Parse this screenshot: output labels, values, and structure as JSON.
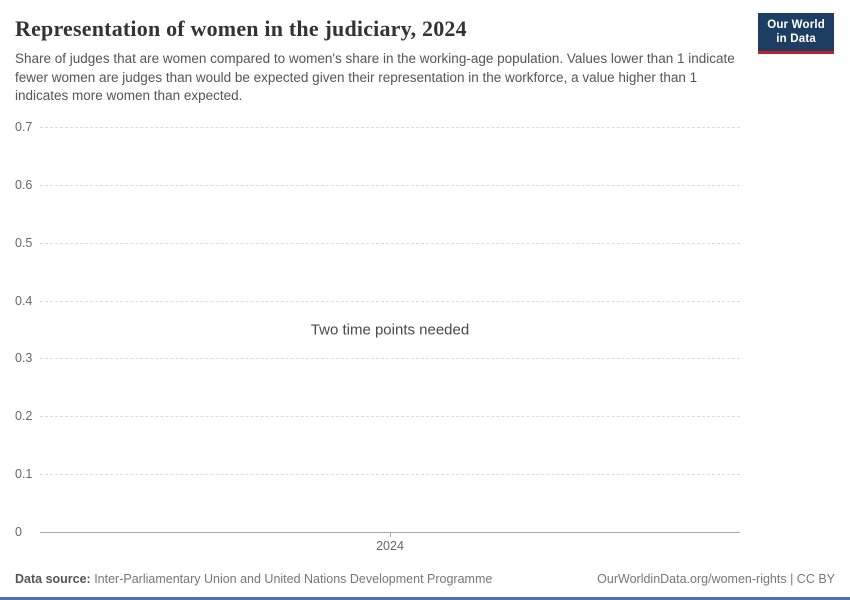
{
  "colors": {
    "logo_bg": "#1d3d63",
    "logo_accent": "#c0222c",
    "footer_bar": "#4a74ad"
  },
  "header": {
    "title": "Representation of women in the judiciary, 2024",
    "subtitle": "Share of judges that are women compared to women's share in the working-age population. Values lower than 1 indicate fewer women are judges than would be expected given their representation in the workforce, a value higher than 1 indicates more women than expected.",
    "logo": {
      "line1": "Our World",
      "line2": "in Data"
    }
  },
  "chart_data": {
    "type": "line",
    "title": "Representation of women in the judiciary, 2024",
    "x": [],
    "series": [],
    "empty_message": "Two time points needed",
    "ylim": [
      0,
      0.7
    ],
    "y_tick_labels": [
      "0.7",
      "0.6",
      "0.5",
      "0.4",
      "0.3",
      "0.2",
      "0.1",
      "0"
    ],
    "x_tick_labels": [
      "2024"
    ],
    "grid": "horizontal-dashed",
    "legend": "none"
  },
  "footer": {
    "source_label": "Data source:",
    "source_text": " Inter-Parliamentary Union and United Nations Development Programme",
    "link_text": "OurWorldinData.org/women-rights | CC BY"
  }
}
